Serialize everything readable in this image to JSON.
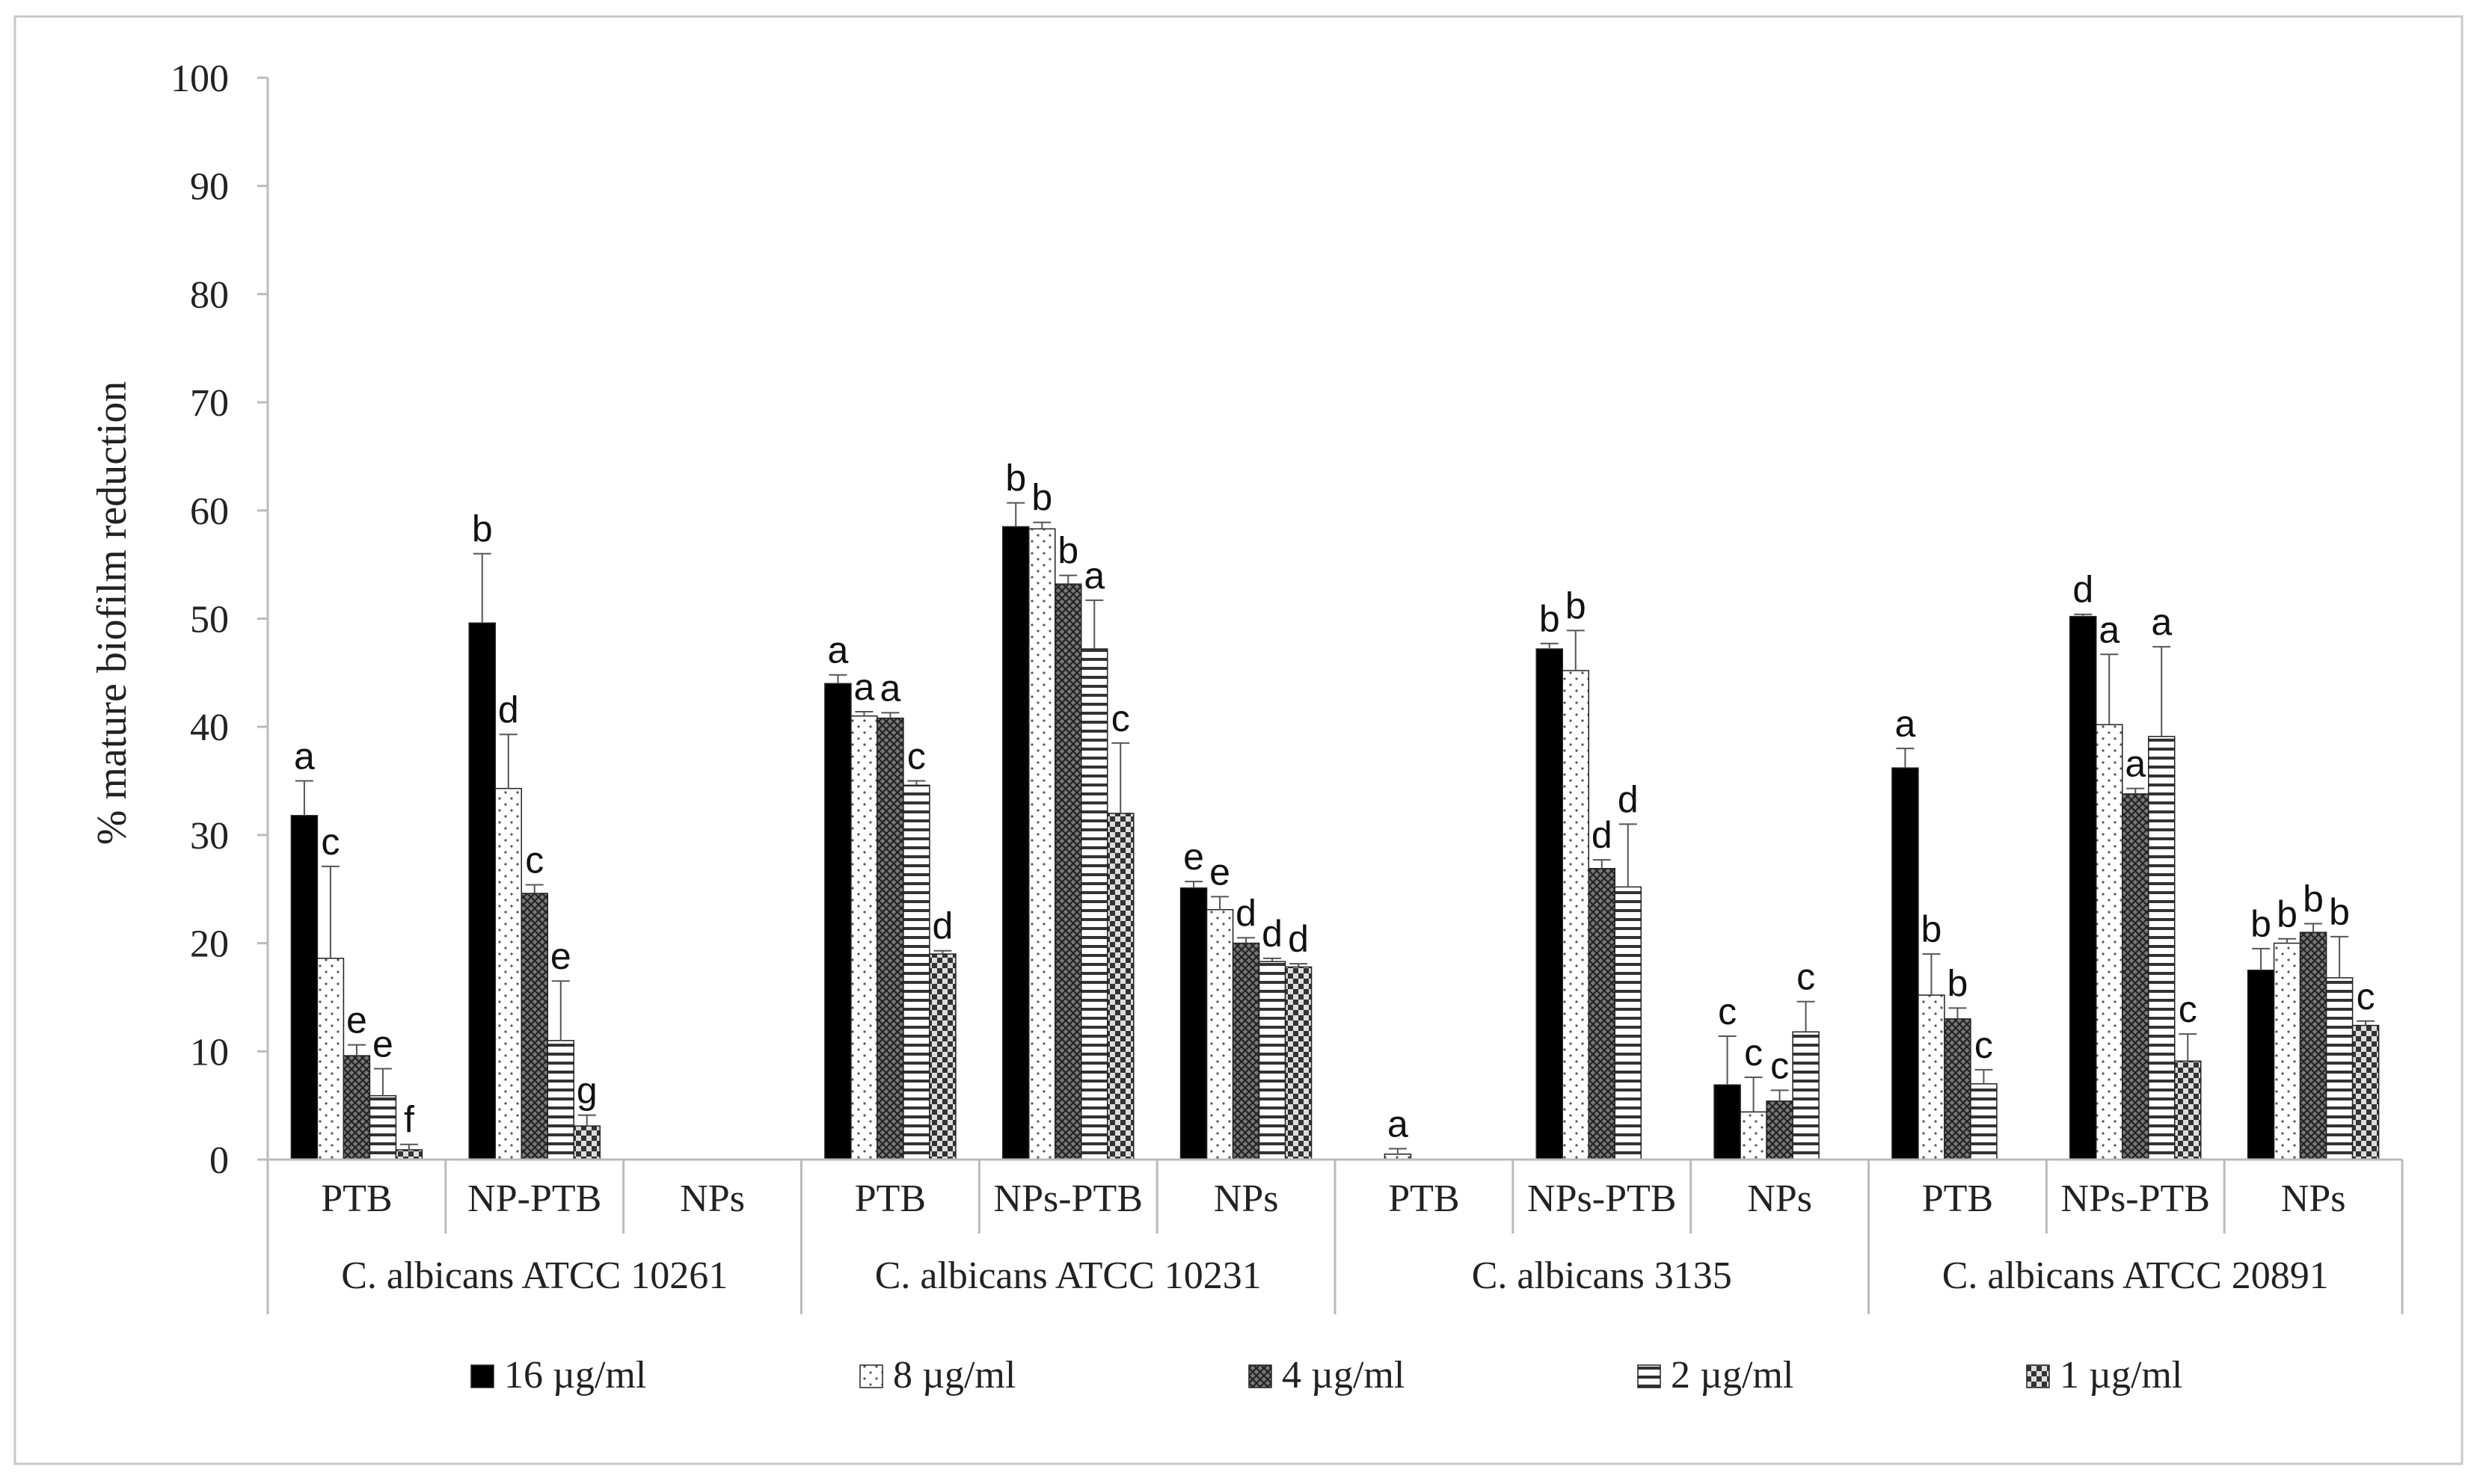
{
  "chart_data": {
    "type": "bar",
    "title": "",
    "ylabel": "% mature biofilm reduction",
    "ylim": [
      0,
      100
    ],
    "yticks": [
      0,
      10,
      20,
      30,
      40,
      50,
      60,
      70,
      80,
      90,
      100
    ],
    "grid": false,
    "legend_position": "bottom",
    "series": [
      {
        "name": "16 µg/ml",
        "pattern": "solid",
        "color": "#000000"
      },
      {
        "name": "8 µg/ml",
        "pattern": "dots",
        "color": "#ffffff"
      },
      {
        "name": "4 µg/ml",
        "pattern": "cross-hatch",
        "color": "#555555"
      },
      {
        "name": "2 µg/ml",
        "pattern": "horizontal",
        "color": "#ffffff"
      },
      {
        "name": "1 µg/ml",
        "pattern": "checker",
        "color": "#888888"
      }
    ],
    "strains": [
      {
        "label": "C. albicans ATCC 10261",
        "groups": [
          {
            "label": "PTB",
            "values": [
              31.8,
              18.6,
              9.6,
              5.9,
              0.9
            ],
            "errors": [
              3.2,
              8.5,
              1.0,
              2.5,
              0.5
            ],
            "letters": [
              "a",
              "c",
              "e",
              "e",
              "f"
            ]
          },
          {
            "label": "NP-PTB",
            "values": [
              49.6,
              34.3,
              24.6,
              11.0,
              3.1
            ],
            "errors": [
              6.4,
              5.0,
              0.8,
              5.5,
              1.0
            ],
            "letters": [
              "b",
              "d",
              "c",
              "e",
              "g"
            ]
          },
          {
            "label": "NPs",
            "values": [
              null,
              null,
              null,
              null,
              null
            ],
            "errors": [
              0,
              0,
              0,
              0,
              0
            ],
            "letters": [
              "",
              "",
              "",
              "",
              ""
            ]
          }
        ]
      },
      {
        "label": "C. albicans ATCC 10231",
        "groups": [
          {
            "label": "PTB",
            "values": [
              44.0,
              41.0,
              40.8,
              34.6,
              19.0
            ],
            "errors": [
              0.8,
              0.4,
              0.5,
              0.4,
              0.3
            ],
            "letters": [
              "a",
              "a",
              "a",
              "c",
              "d"
            ]
          },
          {
            "label": "NPs-PTB",
            "values": [
              58.5,
              58.3,
              53.2,
              47.2,
              32.0
            ],
            "errors": [
              2.2,
              0.6,
              0.8,
              4.5,
              6.5
            ],
            "letters": [
              "b",
              "b",
              "b",
              "a",
              "c"
            ]
          },
          {
            "label": "NPs",
            "values": [
              25.1,
              23.1,
              20.0,
              18.3,
              17.8
            ],
            "errors": [
              0.6,
              1.2,
              0.5,
              0.3,
              0.3
            ],
            "letters": [
              "e",
              "e",
              "d",
              "d",
              "d"
            ]
          }
        ]
      },
      {
        "label": "C. albicans 3135",
        "groups": [
          {
            "label": "PTB",
            "values": [
              null,
              0.5,
              null,
              null,
              null
            ],
            "errors": [
              0,
              0.5,
              0,
              0,
              0
            ],
            "letters": [
              "",
              "a",
              "",
              "",
              ""
            ]
          },
          {
            "label": "NPs-PTB",
            "values": [
              47.2,
              45.2,
              26.9,
              25.2,
              null
            ],
            "errors": [
              0.5,
              3.7,
              0.8,
              5.8,
              0
            ],
            "letters": [
              "b",
              "b",
              "d",
              "d",
              ""
            ]
          },
          {
            "label": "NPs",
            "values": [
              6.9,
              4.4,
              5.4,
              11.8,
              null
            ],
            "errors": [
              4.5,
              3.2,
              1.0,
              2.8,
              0
            ],
            "letters": [
              "c",
              "c",
              "c",
              "c",
              ""
            ]
          }
        ]
      },
      {
        "label": "C. albicans ATCC 20891",
        "groups": [
          {
            "label": "PTB",
            "values": [
              36.2,
              15.2,
              13.0,
              7.0,
              null
            ],
            "errors": [
              1.8,
              3.8,
              1.0,
              1.3,
              0
            ],
            "letters": [
              "a",
              "b",
              "b",
              "c",
              ""
            ]
          },
          {
            "label": "NPs-PTB",
            "values": [
              50.2,
              40.2,
              33.8,
              39.1,
              9.1
            ],
            "errors": [
              0.2,
              6.5,
              0.5,
              8.3,
              2.5
            ],
            "letters": [
              "d",
              "a",
              "a",
              "a",
              "c"
            ]
          },
          {
            "label": "NPs",
            "values": [
              17.5,
              20.0,
              21.0,
              16.8,
              12.4
            ],
            "errors": [
              2.0,
              0.4,
              0.8,
              3.8,
              0.4
            ],
            "letters": [
              "b",
              "b",
              "b",
              "b",
              "c"
            ]
          }
        ]
      }
    ]
  }
}
